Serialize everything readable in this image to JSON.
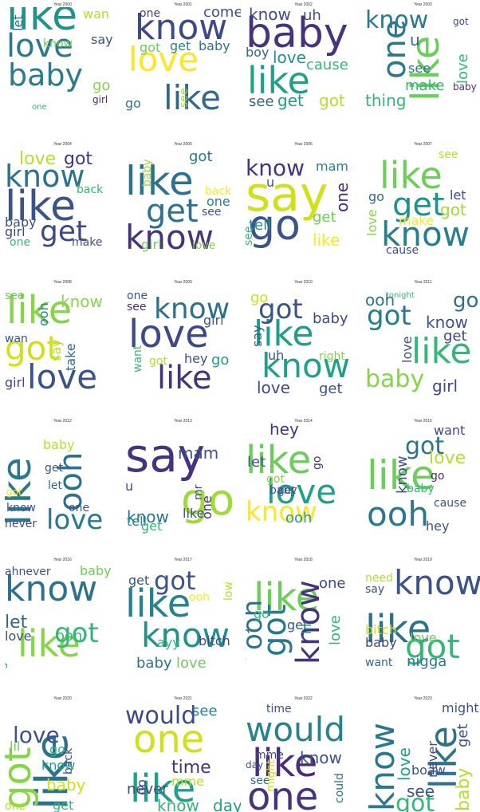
{
  "palette": [
    "#440154",
    "#46327e",
    "#365c8d",
    "#277f8e",
    "#1fa187",
    "#4ac16d",
    "#a0da39",
    "#fde725"
  ],
  "panels": [
    {
      "title": "Year 2000",
      "words": [
        {
          "w": "like",
          "c": "#21918c"
        },
        {
          "w": "love",
          "c": "#2a788e"
        },
        {
          "w": "baby",
          "c": "#287c8e"
        },
        {
          "w": "wan",
          "c": "#b5de2b"
        },
        {
          "w": "let",
          "c": "#2c728e"
        },
        {
          "w": "know",
          "c": "#6ccd5a"
        },
        {
          "w": "say",
          "c": "#3b528b"
        },
        {
          "w": "go",
          "c": "#86d549"
        },
        {
          "w": "girl",
          "c": "#472d7b"
        },
        {
          "w": "one",
          "c": "#35b779"
        }
      ]
    },
    {
      "title": "Year 2001",
      "words": [
        {
          "w": "know",
          "c": "#3e4989"
        },
        {
          "w": "love",
          "c": "#fde725"
        },
        {
          "w": "like",
          "c": "#31688e"
        },
        {
          "w": "one",
          "c": "#433e85"
        },
        {
          "w": "come",
          "c": "#3b528b"
        },
        {
          "w": "got",
          "c": "#6ccd5a"
        },
        {
          "w": "get",
          "c": "#26828e"
        },
        {
          "w": "baby",
          "c": "#2c728e"
        },
        {
          "w": "go",
          "c": "#2a788e"
        },
        {
          "w": "see",
          "c": "#b5de2b"
        }
      ]
    },
    {
      "title": "Year 2002",
      "words": [
        {
          "w": "baby",
          "c": "#46327e"
        },
        {
          "w": "like",
          "c": "#1fa187"
        },
        {
          "w": "know",
          "c": "#3e4989"
        },
        {
          "w": "uh",
          "c": "#3b528b"
        },
        {
          "w": "boy",
          "c": "#31688e"
        },
        {
          "w": "love",
          "c": "#21918c"
        },
        {
          "w": "cause",
          "c": "#35b779"
        },
        {
          "w": "see",
          "c": "#31688e"
        },
        {
          "w": "get",
          "c": "#1f9e89"
        },
        {
          "w": "got",
          "c": "#b5de2b"
        }
      ]
    },
    {
      "title": "Year 2003",
      "words": [
        {
          "w": "like",
          "c": "#6ccd5a"
        },
        {
          "w": "one",
          "c": "#2a788e"
        },
        {
          "w": "know",
          "c": "#287c8e"
        },
        {
          "w": "u",
          "c": "#31688e"
        },
        {
          "w": "got",
          "c": "#3b528b"
        },
        {
          "w": "love",
          "c": "#35b779"
        },
        {
          "w": "see",
          "c": "#2c728e"
        },
        {
          "w": "make",
          "c": "#35b779"
        },
        {
          "w": "thing",
          "c": "#35b779"
        },
        {
          "w": "baby",
          "c": "#472d7b"
        }
      ]
    },
    {
      "title": "Year 2004",
      "words": [
        {
          "w": "like",
          "c": "#3b528b"
        },
        {
          "w": "know",
          "c": "#2c728e"
        },
        {
          "w": "get",
          "c": "#3e4989"
        },
        {
          "w": "love",
          "c": "#b5de2b"
        },
        {
          "w": "got",
          "c": "#46327e"
        },
        {
          "w": "back",
          "c": "#35b779"
        },
        {
          "w": "baby",
          "c": "#3b528b"
        },
        {
          "w": "girl",
          "c": "#3e4989"
        },
        {
          "w": "one",
          "c": "#35b779"
        },
        {
          "w": "make",
          "c": "#3b528b"
        }
      ]
    },
    {
      "title": "Year 2005",
      "words": [
        {
          "w": "like",
          "c": "#2c728e"
        },
        {
          "w": "get",
          "c": "#2c728e"
        },
        {
          "w": "know",
          "c": "#46327e"
        },
        {
          "w": "got",
          "c": "#2a788e"
        },
        {
          "w": "baby",
          "c": "#a0da39"
        },
        {
          "w": "back",
          "c": "#fde725"
        },
        {
          "w": "one",
          "c": "#26828e"
        },
        {
          "w": "see",
          "c": "#3b528b"
        },
        {
          "w": "girl",
          "c": "#6ccd5a"
        },
        {
          "w": "love",
          "c": "#86d549"
        }
      ]
    },
    {
      "title": "Year 2006",
      "words": [
        {
          "w": "say",
          "c": "#d0e11c"
        },
        {
          "w": "go",
          "c": "#3b528b"
        },
        {
          "w": "know",
          "c": "#46327e"
        },
        {
          "w": "mam",
          "c": "#26828e"
        },
        {
          "w": "u",
          "c": "#3b528b"
        },
        {
          "w": "one",
          "c": "#472d7b"
        },
        {
          "w": "tell",
          "c": "#21918c"
        },
        {
          "w": "see",
          "c": "#35b779"
        },
        {
          "w": "get",
          "c": "#6ccd5a"
        },
        {
          "w": "like",
          "c": "#fde725"
        }
      ]
    },
    {
      "title": "Year 2007",
      "words": [
        {
          "w": "like",
          "c": "#6ccd5a"
        },
        {
          "w": "get",
          "c": "#21918c"
        },
        {
          "w": "know",
          "c": "#277f8e"
        },
        {
          "w": "see",
          "c": "#b5de2b"
        },
        {
          "w": "go",
          "c": "#31688e"
        },
        {
          "w": "let",
          "c": "#3e4989"
        },
        {
          "w": "got",
          "c": "#a0da39"
        },
        {
          "w": "make",
          "c": "#fde725"
        },
        {
          "w": "love",
          "c": "#86d549"
        },
        {
          "w": "cause",
          "c": "#3e4989"
        }
      ]
    },
    {
      "title": "Year 2008",
      "words": [
        {
          "w": "like",
          "c": "#86d549"
        },
        {
          "w": "got",
          "c": "#d0e11c"
        },
        {
          "w": "love",
          "c": "#3b528b"
        },
        {
          "w": "know",
          "c": "#86d549"
        },
        {
          "w": "see",
          "c": "#6ccd5a"
        },
        {
          "w": "ooh",
          "c": "#26828e"
        },
        {
          "w": "wan",
          "c": "#3b528b"
        },
        {
          "w": "say",
          "c": "#b5de2b"
        },
        {
          "w": "take",
          "c": "#31688e"
        },
        {
          "w": "girl",
          "c": "#3e4989"
        }
      ]
    },
    {
      "title": "Year 2009",
      "words": [
        {
          "w": "love",
          "c": "#3e4989"
        },
        {
          "w": "like",
          "c": "#46327e"
        },
        {
          "w": "know",
          "c": "#2c728e"
        },
        {
          "w": "one",
          "c": "#3b528b"
        },
        {
          "w": "see",
          "c": "#472d7b"
        },
        {
          "w": "girl",
          "c": "#3b528b"
        },
        {
          "w": "want",
          "c": "#35b779"
        },
        {
          "w": "got",
          "c": "#b5de2b"
        },
        {
          "w": "hey",
          "c": "#3b528b"
        },
        {
          "w": "go",
          "c": "#1f9e89"
        }
      ]
    },
    {
      "title": "Year 2010",
      "words": [
        {
          "w": "like",
          "c": "#1f9e89"
        },
        {
          "w": "know",
          "c": "#1fa187"
        },
        {
          "w": "got",
          "c": "#3b528b"
        },
        {
          "w": "go",
          "c": "#d0e11c"
        },
        {
          "w": "baby",
          "c": "#3e4989"
        },
        {
          "w": "say",
          "c": "#31688e"
        },
        {
          "w": "uh",
          "c": "#3b528b"
        },
        {
          "w": "right",
          "c": "#86d549"
        },
        {
          "w": "love",
          "c": "#3e4989"
        },
        {
          "w": "get",
          "c": "#3b528b"
        }
      ]
    },
    {
      "title": "Year 2011",
      "words": [
        {
          "w": "like",
          "c": "#35b779"
        },
        {
          "w": "got",
          "c": "#287c8e"
        },
        {
          "w": "baby",
          "c": "#86d549"
        },
        {
          "w": "ooh",
          "c": "#2c728e"
        },
        {
          "w": "tonight",
          "c": "#35b779"
        },
        {
          "w": "go",
          "c": "#2c728e"
        },
        {
          "w": "know",
          "c": "#3b528b"
        },
        {
          "w": "get",
          "c": "#3e4989"
        },
        {
          "w": "love",
          "c": "#3b528b"
        },
        {
          "w": "girl",
          "c": "#3e4989"
        }
      ]
    },
    {
      "title": "Year 2012",
      "words": [
        {
          "w": "like",
          "c": "#2a788e"
        },
        {
          "w": "ooh",
          "c": "#2c728e"
        },
        {
          "w": "love",
          "c": "#2a788e"
        },
        {
          "w": "baby",
          "c": "#b5de2b"
        },
        {
          "w": "get",
          "c": "#3b528b"
        },
        {
          "w": "got",
          "c": "#fde725"
        },
        {
          "w": "let",
          "c": "#31688e"
        },
        {
          "w": "know",
          "c": "#3b528b"
        },
        {
          "w": "one",
          "c": "#3b528b"
        },
        {
          "w": "never",
          "c": "#3e4989"
        }
      ]
    },
    {
      "title": "Year 2013",
      "words": [
        {
          "w": "say",
          "c": "#46327e"
        },
        {
          "w": "go",
          "c": "#a0da39"
        },
        {
          "w": "know",
          "c": "#2c728e"
        },
        {
          "w": "mam",
          "c": "#3b528b"
        },
        {
          "w": "one",
          "c": "#472d7b"
        },
        {
          "w": "u",
          "c": "#3b528b"
        },
        {
          "w": "mr",
          "c": "#3e4989"
        },
        {
          "w": "tell",
          "c": "#26828e"
        },
        {
          "w": "like",
          "c": "#3b528b"
        },
        {
          "w": "get",
          "c": "#35b779"
        }
      ]
    },
    {
      "title": "Year 2014",
      "words": [
        {
          "w": "like",
          "c": "#6ccd5a"
        },
        {
          "w": "love",
          "c": "#1fa187"
        },
        {
          "w": "know",
          "c": "#fde725"
        },
        {
          "w": "hey",
          "c": "#46327e"
        },
        {
          "w": "let",
          "c": "#3b528b"
        },
        {
          "w": "ooh",
          "c": "#1f9e89"
        },
        {
          "w": "got",
          "c": "#86d549"
        },
        {
          "w": "get",
          "c": "#31688e"
        },
        {
          "w": "go",
          "c": "#46327e"
        },
        {
          "w": "baby",
          "c": "#3b528b"
        }
      ]
    },
    {
      "title": "Year 2015",
      "words": [
        {
          "w": "like",
          "c": "#6ccd5a"
        },
        {
          "w": "ooh",
          "c": "#2a788e"
        },
        {
          "w": "got",
          "c": "#2c728e"
        },
        {
          "w": "want",
          "c": "#3e4989"
        },
        {
          "w": "love",
          "c": "#b5de2b"
        },
        {
          "w": "cause",
          "c": "#3b528b"
        },
        {
          "w": "go",
          "c": "#472d7b"
        },
        {
          "w": "know",
          "c": "#3b528b"
        },
        {
          "w": "baby",
          "c": "#35b779"
        },
        {
          "w": "hey",
          "c": "#3b528b"
        }
      ]
    },
    {
      "title": "Year 2016",
      "words": [
        {
          "w": "know",
          "c": "#2c728e"
        },
        {
          "w": "like",
          "c": "#86d549"
        },
        {
          "w": "got",
          "c": "#35b779"
        },
        {
          "w": "ahnever",
          "c": "#3b528b"
        },
        {
          "w": "baby",
          "c": "#6ccd5a"
        },
        {
          "w": "let",
          "c": "#31688e"
        },
        {
          "w": "love",
          "c": "#3b528b"
        },
        {
          "w": "ooh",
          "c": "#35b779"
        },
        {
          "w": "go",
          "c": "#21918c"
        }
      ]
    },
    {
      "title": "Year 2017",
      "words": [
        {
          "w": "like",
          "c": "#26828e"
        },
        {
          "w": "know",
          "c": "#21918c"
        },
        {
          "w": "got",
          "c": "#3b528b"
        },
        {
          "w": "get",
          "c": "#3b528b"
        },
        {
          "w": "ooh",
          "c": "#fde725"
        },
        {
          "w": "low",
          "c": "#b5de2b"
        },
        {
          "w": "ayy",
          "c": "#35b779"
        },
        {
          "w": "bitch",
          "c": "#3e4989"
        },
        {
          "w": "baby",
          "c": "#2c728e"
        },
        {
          "w": "love",
          "c": "#6ccd5a"
        }
      ]
    },
    {
      "title": "Year 2018",
      "words": [
        {
          "w": "like",
          "c": "#6ccd5a"
        },
        {
          "w": "got",
          "c": "#2a788e"
        },
        {
          "w": "know",
          "c": "#46327e"
        },
        {
          "w": "ooh",
          "c": "#2c728e"
        },
        {
          "w": "one",
          "c": "#3e4989"
        },
        {
          "w": "go",
          "c": "#35b779"
        },
        {
          "w": "get",
          "c": "#3b528b"
        },
        {
          "w": "lil",
          "c": "#21918c"
        },
        {
          "w": "love",
          "c": "#35b779"
        },
        {
          "w": "baby",
          "c": "#2a788e"
        }
      ]
    },
    {
      "title": "Year 2019",
      "words": [
        {
          "w": "know",
          "c": "#3b528b"
        },
        {
          "w": "like",
          "c": "#2c728e"
        },
        {
          "w": "got",
          "c": "#35b779"
        },
        {
          "w": "need",
          "c": "#b5de2b"
        },
        {
          "w": "say",
          "c": "#3b528b"
        },
        {
          "w": "love",
          "c": "#6ccd5a"
        },
        {
          "w": "bitch",
          "c": "#d0e11c"
        },
        {
          "w": "baby",
          "c": "#3e4989"
        },
        {
          "w": "want",
          "c": "#31688e"
        },
        {
          "w": "nigga",
          "c": "#2a788e"
        }
      ]
    },
    {
      "title": "Year 2020",
      "words": [
        {
          "w": "like",
          "c": "#2c728e"
        },
        {
          "w": "got",
          "c": "#86d549"
        },
        {
          "w": "love",
          "c": "#3b528b"
        },
        {
          "w": "lil",
          "c": "#6ccd5a"
        },
        {
          "w": "go",
          "c": "#35b779"
        },
        {
          "w": "back",
          "c": "#3e4989"
        },
        {
          "w": "know",
          "c": "#1fa187"
        },
        {
          "w": "baby",
          "c": "#d0e11c"
        },
        {
          "w": "get",
          "c": "#35b779"
        },
        {
          "w": "one",
          "c": "#b5de2b"
        }
      ]
    },
    {
      "title": "Year 2021",
      "words": [
        {
          "w": "one",
          "c": "#d0e11c"
        },
        {
          "w": "like",
          "c": "#1fa187"
        },
        {
          "w": "would",
          "c": "#3e4989"
        },
        {
          "w": "see",
          "c": "#26828e"
        },
        {
          "w": "never",
          "c": "#3e4989"
        },
        {
          "w": "time",
          "c": "#46327e"
        },
        {
          "w": "go",
          "c": "#3b528b"
        },
        {
          "w": "mme",
          "c": "#b5de2b"
        },
        {
          "w": "know",
          "c": "#35b779"
        },
        {
          "w": "day",
          "c": "#1fa187"
        }
      ]
    },
    {
      "title": "Year 2022",
      "words": [
        {
          "w": "would",
          "c": "#26828e"
        },
        {
          "w": "like",
          "c": "#472d7b"
        },
        {
          "w": "one",
          "c": "#46327e"
        },
        {
          "w": "time",
          "c": "#3b528b"
        },
        {
          "w": "mme",
          "c": "#3e4989"
        },
        {
          "w": "day",
          "c": "#3b528b"
        },
        {
          "w": "know",
          "c": "#3b528b"
        },
        {
          "w": "see",
          "c": "#31688e"
        },
        {
          "w": "might",
          "c": "#d0e11c"
        },
        {
          "w": "could",
          "c": "#2c728e"
        }
      ]
    },
    {
      "title": "Year 2023",
      "words": [
        {
          "w": "like",
          "c": "#2c728e"
        },
        {
          "w": "know",
          "c": "#2a788e"
        },
        {
          "w": "got",
          "c": "#35b779"
        },
        {
          "w": "might",
          "c": "#3b528b"
        },
        {
          "w": "never",
          "c": "#3e4989"
        },
        {
          "w": "get",
          "c": "#3b528b"
        },
        {
          "w": "love",
          "c": "#1fa187"
        },
        {
          "w": "boaw",
          "c": "#3b528b"
        },
        {
          "w": "see",
          "c": "#3b528b"
        },
        {
          "w": "baby",
          "c": "#b5de2b"
        }
      ]
    }
  ]
}
